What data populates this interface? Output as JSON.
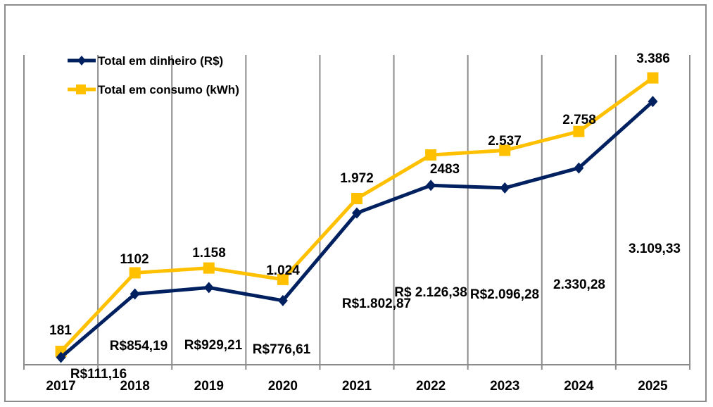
{
  "chart_data": {
    "type": "line",
    "title": "",
    "xlabel": "",
    "ylabel": "",
    "categories": [
      "2017",
      "2018",
      "2019",
      "2020",
      "2021",
      "2022",
      "2023",
      "2024",
      "2025"
    ],
    "grid": "vertical",
    "legend_position": "top-left",
    "series": [
      {
        "name": "Total em dinheiro (R$)",
        "color": "#002060",
        "marker": "diamond",
        "values": [
          111.16,
          854.19,
          929.21,
          776.61,
          1802.87,
          2126.38,
          2096.28,
          2330.28,
          3109.33
        ],
        "labels": [
          "R$111,16",
          "R$854,19",
          "R$929,21",
          "R$776,61",
          "R$1.802,87",
          "R$ 2.126,38",
          "R$2.096,28",
          "2.330,28",
          "3.109,33"
        ]
      },
      {
        "name": "Total em consumo (kWh)",
        "color": "#FFC000",
        "marker": "square",
        "values": [
          181,
          1102,
          1158,
          1024,
          1972,
          2483,
          2537,
          2758,
          3386
        ],
        "labels": [
          "181",
          "1102",
          "1.158",
          "1.024",
          "1.972",
          "2483",
          "2.537",
          "2.758",
          "3.386"
        ]
      }
    ],
    "ylim": [
      0,
      3600
    ]
  }
}
